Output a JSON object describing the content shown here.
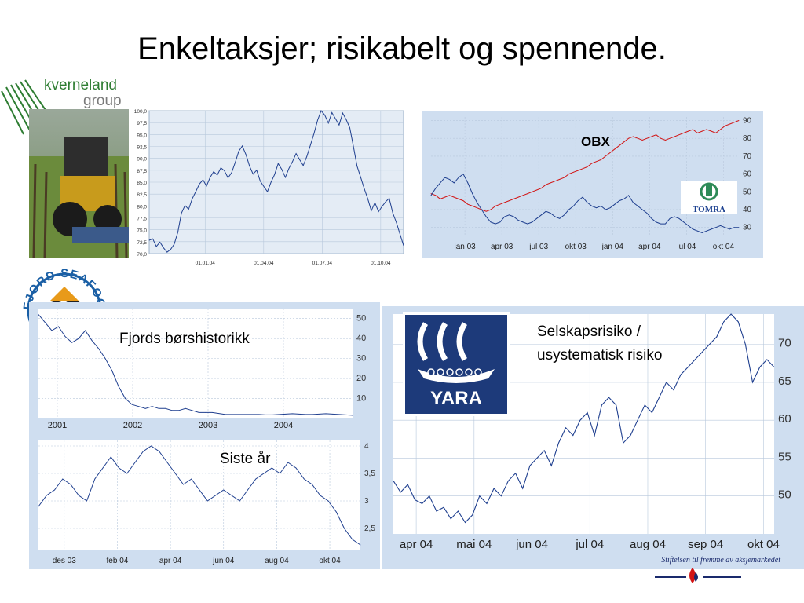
{
  "title": "Enkeltaksjer; risikabelt og spennende.",
  "logos": {
    "kverneland_line1": "kverneland",
    "kverneland_line2": "group",
    "fjord": "FJORD SEAFOOD",
    "tomra": "TOMRA",
    "yara": "YARA"
  },
  "footer": "Stiftelsen til fremme av aksjemarkedet",
  "colors": {
    "panel_bg": "#cfdef0",
    "line_blue": "#1f3f8f",
    "line_red": "#d21414",
    "grid": "#b8c8dc"
  },
  "chart_data": [
    {
      "id": "kverneland",
      "type": "line",
      "series": [
        {
          "values": [
            72.8,
            73.1,
            71.5,
            72.4,
            71.2,
            70.3,
            70.9,
            72.0,
            74.5,
            78.5,
            80.1,
            79.3,
            81.5,
            83.0,
            84.6,
            85.5,
            84.2,
            86.0,
            87.2,
            86.5,
            88.0,
            87.4,
            85.9,
            87.0,
            89.1,
            91.5,
            92.6,
            90.8,
            88.4,
            86.7,
            87.5,
            85.2,
            84.1,
            83.0,
            85.0,
            86.6,
            88.9,
            87.7,
            86.0,
            87.9,
            89.3,
            91.0,
            89.7,
            88.5,
            90.4,
            92.8,
            95.2,
            98.0,
            100.0,
            99.1,
            97.4,
            99.6,
            98.3,
            97.0,
            99.5,
            98.1,
            96.4,
            92.5,
            88.4,
            86.1,
            83.7,
            81.5,
            79.0,
            80.7,
            78.8,
            79.9,
            80.9,
            81.6,
            78.5,
            76.5,
            74.1,
            71.7
          ]
        }
      ],
      "x_ticks": [
        "01.01.04",
        "01.04.04",
        "01.07.04",
        "01.10.04"
      ],
      "y_ticks": [
        "100,0",
        "97,5",
        "95,0",
        "92,5",
        "90,0",
        "87,5",
        "85,0",
        "82,5",
        "80,0",
        "77,5",
        "75,0",
        "72,5",
        "70,0"
      ],
      "ylim": [
        70,
        100
      ],
      "grid": true
    },
    {
      "id": "obx_tomra",
      "type": "line",
      "labels": {
        "obx": "OBX"
      },
      "series": [
        {
          "values": [
            49,
            48,
            46,
            47,
            48,
            47,
            46,
            45,
            43,
            42,
            41,
            40,
            39,
            40,
            42,
            43,
            44,
            45,
            46,
            47,
            48,
            49,
            50,
            51,
            52,
            54,
            55,
            56,
            57,
            58,
            60,
            61,
            62,
            63,
            64,
            66,
            67,
            68,
            70,
            72,
            74,
            76,
            78,
            80,
            81,
            80,
            79,
            80,
            81,
            82,
            80,
            79,
            80,
            81,
            82,
            83,
            84,
            85,
            83,
            84,
            85,
            84,
            83,
            85,
            87,
            88,
            89,
            90
          ]
        },
        {
          "values": [
            48,
            52,
            55,
            58,
            57,
            55,
            58,
            60,
            55,
            49,
            44,
            40,
            36,
            33,
            32,
            33,
            36,
            37,
            36,
            34,
            33,
            32,
            33,
            35,
            37,
            39,
            38,
            36,
            35,
            37,
            40,
            42,
            45,
            47,
            44,
            42,
            41,
            42,
            40,
            41,
            43,
            45,
            46,
            48,
            44,
            42,
            40,
            38,
            35,
            33,
            32,
            32,
            35,
            36,
            35,
            33,
            31,
            29,
            28,
            27,
            28,
            29,
            30,
            31,
            30,
            29,
            30,
            30
          ]
        }
      ],
      "x_ticks": [
        "jan 03",
        "apr 03",
        "jul 03",
        "okt 03",
        "jan 04",
        "apr 04",
        "jul 04",
        "okt 04"
      ],
      "y_ticks": [
        "90",
        "80",
        "70",
        "60",
        "50",
        "40",
        "30"
      ],
      "ylim": [
        25,
        92
      ],
      "grid": true
    },
    {
      "id": "fjord_history",
      "type": "line",
      "title": "Fjords børshistorikk",
      "series": [
        {
          "values": [
            52,
            48,
            44,
            46,
            41,
            38,
            40,
            44,
            39,
            35,
            30,
            24,
            16,
            10,
            7,
            6,
            5,
            6,
            5,
            5,
            4,
            4,
            5,
            4,
            3,
            3,
            3,
            2.5,
            2,
            2,
            2,
            2,
            2,
            2,
            1.8,
            1.8,
            2,
            2.2,
            2.4,
            2.2,
            2,
            2,
            2.2,
            2.4,
            2.2,
            2,
            1.8,
            1.6
          ]
        }
      ],
      "x_ticks": [
        "2001",
        "2002",
        "2003",
        "2004"
      ],
      "y_ticks": [
        "50",
        "40",
        "30",
        "20",
        "10"
      ],
      "ylim": [
        0,
        55
      ],
      "grid": true
    },
    {
      "id": "fjord_last_year",
      "type": "line",
      "title": "Siste år",
      "series": [
        {
          "values": [
            2.9,
            3.1,
            3.2,
            3.4,
            3.3,
            3.1,
            3.0,
            3.4,
            3.6,
            3.8,
            3.6,
            3.5,
            3.7,
            3.9,
            4.0,
            3.9,
            3.7,
            3.5,
            3.3,
            3.4,
            3.2,
            3.0,
            3.1,
            3.2,
            3.1,
            3.0,
            3.2,
            3.4,
            3.5,
            3.6,
            3.5,
            3.7,
            3.6,
            3.4,
            3.3,
            3.1,
            3.0,
            2.8,
            2.5,
            2.3,
            2.2
          ]
        }
      ],
      "x_ticks": [
        "des 03",
        "feb 04",
        "apr 04",
        "jun 04",
        "aug 04",
        "okt 04"
      ],
      "y_ticks": [
        "4",
        "3,5",
        "3",
        "2,5"
      ],
      "ylim": [
        2.1,
        4.1
      ],
      "grid": true
    },
    {
      "id": "yara",
      "type": "line",
      "title": "Selskapsrisiko /",
      "subtitle": "usystematisk risiko",
      "series": [
        {
          "values": [
            52,
            50.5,
            51.5,
            49.5,
            49,
            50,
            48,
            48.5,
            47,
            48,
            46.5,
            47.5,
            50,
            49,
            51,
            50,
            52,
            53,
            51,
            54,
            55,
            56,
            54,
            57,
            59,
            58,
            60,
            61,
            58,
            62,
            63,
            62,
            57,
            58,
            60,
            62,
            61,
            63,
            65,
            64,
            66,
            67,
            68,
            69,
            70,
            71,
            73,
            74,
            73,
            70,
            65,
            67,
            68,
            67
          ]
        }
      ],
      "x_ticks": [
        "apr 04",
        "mai 04",
        "jun 04",
        "jul 04",
        "aug 04",
        "sep 04",
        "okt 04"
      ],
      "y_ticks": [
        "70",
        "65",
        "60",
        "55",
        "50"
      ],
      "ylim": [
        45,
        74
      ],
      "grid": true
    }
  ]
}
